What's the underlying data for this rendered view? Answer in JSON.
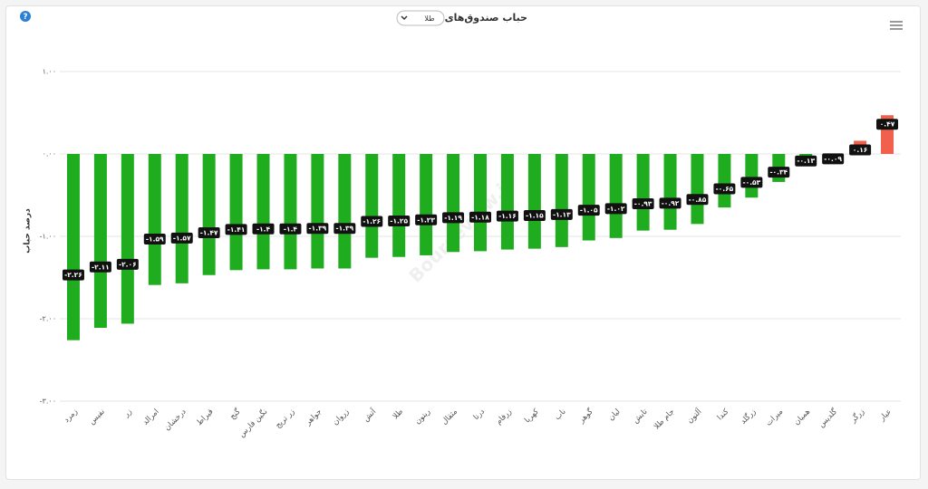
{
  "chart_data": {
    "type": "bar",
    "title": "حباب صندوق‌های طلا",
    "selector": "طلا",
    "ylabel": "درصد حباب",
    "watermark": "Bourseview.ir",
    "categories": [
      "زمرد",
      "نفیس",
      "زر",
      "امرالد",
      "درخشان",
      "قیراط",
      "گنج",
      "نگین فارس",
      "زر تریج",
      "جواهر",
      "زروان",
      "آتش",
      "طلا",
      "ریتون",
      "مثقال",
      "درنا",
      "زرفام",
      "کهربا",
      "ناب",
      "گوهر",
      "لیان",
      "تابش",
      "جام طلا",
      "آلتون",
      "کندا",
      "زرگلد",
      "میرات",
      "همیان",
      "گلدیس",
      "زرگر",
      "عیار"
    ],
    "values": [
      -2.26,
      -2.11,
      -2.06,
      -1.59,
      -1.57,
      -1.47,
      -1.41,
      -1.4,
      -1.4,
      -1.39,
      -1.39,
      -1.26,
      -1.25,
      -1.23,
      -1.19,
      -1.18,
      -1.16,
      -1.15,
      -1.13,
      -1.05,
      -1.02,
      -0.93,
      -0.92,
      -0.85,
      -0.65,
      -0.53,
      -0.34,
      -0.13,
      -0.09,
      0.16,
      0.47
    ],
    "value_labels": [
      "-۲.۲۶",
      "-۲.۱۱",
      "-۲.۰۶",
      "-۱.۵۹",
      "-۱.۵۷",
      "-۱.۴۷",
      "-۱.۴۱",
      "-۱.۴",
      "-۱.۴",
      "-۱.۳۹",
      "-۱.۳۹",
      "-۱.۲۶",
      "-۱.۲۵",
      "-۱.۲۳",
      "-۱.۱۹",
      "-۱.۱۸",
      "-۱.۱۶",
      "-۱.۱۵",
      "-۱.۱۳",
      "-۱.۰۵",
      "-۱.۰۲",
      "-۰.۹۳",
      "-۰.۹۲",
      "-۰.۸۵",
      "-۰.۶۵",
      "-۰.۵۳",
      "-۰.۳۴",
      "-۰.۱۳",
      "-۰.۰۹",
      "۰.۱۶",
      "۰.۴۷"
    ],
    "positive_color": "#f0604c",
    "negative_color": "#1fad1f",
    "ylim": [
      -3,
      1
    ],
    "yticks": [
      {
        "value": 1,
        "label": "۱.۰۰"
      },
      {
        "value": 0,
        "label": "۰.۰۰"
      },
      {
        "value": -1,
        "label": "-۱.۰۰"
      },
      {
        "value": -2,
        "label": "-۲.۰۰"
      },
      {
        "value": -3,
        "label": "-۳.۰۰"
      }
    ],
    "grid": true
  }
}
